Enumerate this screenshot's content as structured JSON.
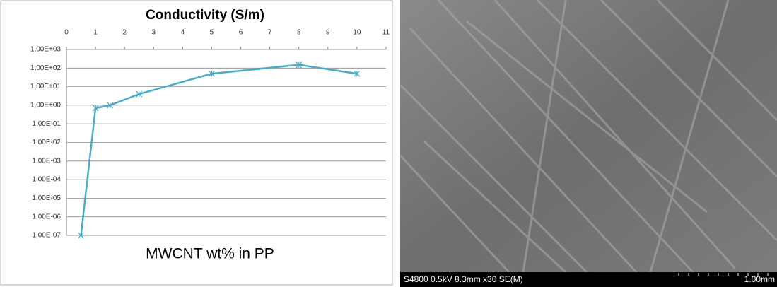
{
  "chart_data": {
    "type": "line",
    "title": "Conductivity (S/m)",
    "x_label": "MWCNT wt% in PP",
    "y_scale": "log",
    "grid": true,
    "xlim": [
      0,
      11
    ],
    "xticks": [
      0,
      1,
      2,
      3,
      4,
      5,
      6,
      7,
      8,
      9,
      10,
      11
    ],
    "ylim": [
      1e-07,
      1000
    ],
    "yticks": [
      {
        "value": 1000,
        "label": "1,00E+03"
      },
      {
        "value": 100,
        "label": "1,00E+02"
      },
      {
        "value": 10,
        "label": "1,00E+01"
      },
      {
        "value": 1,
        "label": "1,00E+00"
      },
      {
        "value": 0.1,
        "label": "1,00E-01"
      },
      {
        "value": 0.01,
        "label": "1,00E-02"
      },
      {
        "value": 0.001,
        "label": "1,00E-03"
      },
      {
        "value": 0.0001,
        "label": "1,00E-04"
      },
      {
        "value": 1e-05,
        "label": "1,00E-05"
      },
      {
        "value": 1e-06,
        "label": "1,00E-06"
      },
      {
        "value": 1e-07,
        "label": "1,00E-07"
      }
    ],
    "series": [
      {
        "color": "#4bacc6",
        "x": [
          0.5,
          1,
          1.5,
          2.5,
          5,
          8,
          10
        ],
        "values": [
          1e-07,
          0.7,
          1,
          4,
          50,
          150,
          50
        ]
      }
    ]
  },
  "sem_image": {
    "caption": "S4800 0.5kV 8.3mm x30 SE(M)",
    "scale_label": "1.00mm"
  }
}
